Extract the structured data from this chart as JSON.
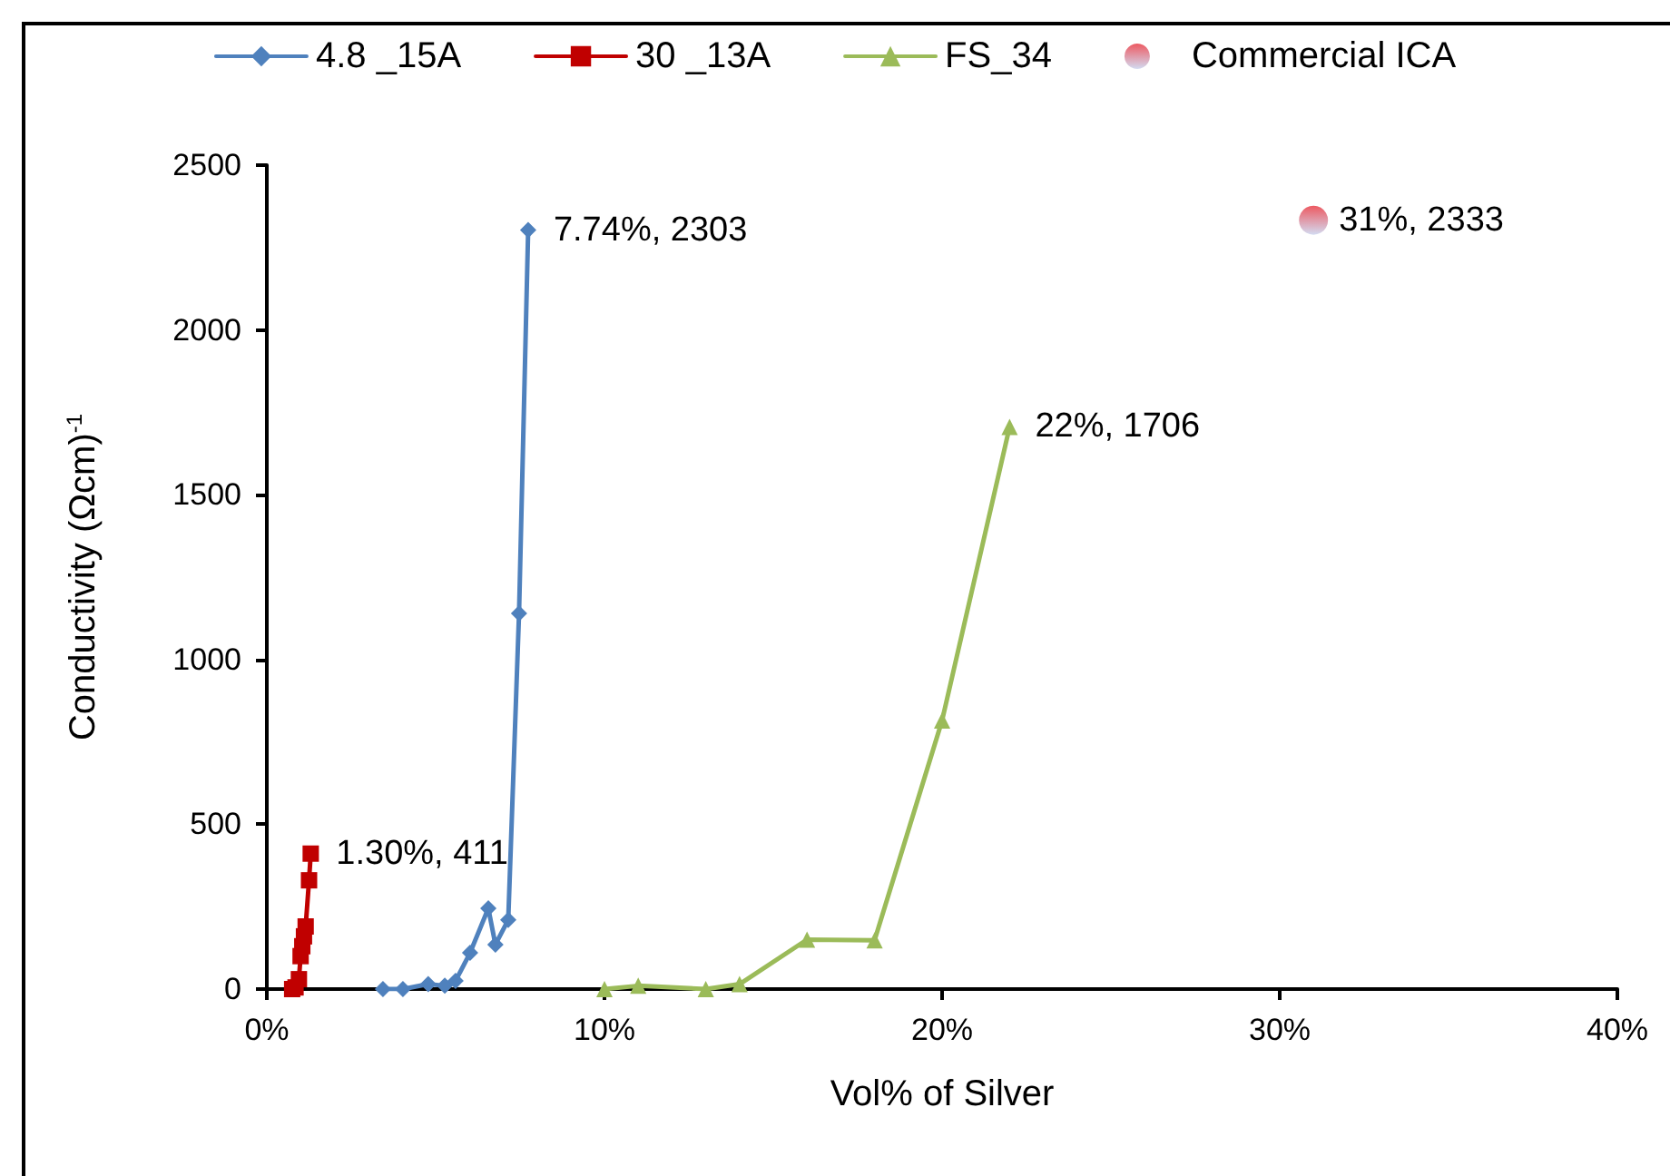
{
  "chart_data": {
    "type": "line",
    "xlabel": "Vol% of Silver",
    "ylabel": "Conductivity (Ωcm)$^{-1}$",
    "xlim": [
      0,
      40
    ],
    "xticks": [
      {
        "value": 0,
        "label": "0%"
      },
      {
        "value": 10,
        "label": "10%"
      },
      {
        "value": 20,
        "label": "20%"
      },
      {
        "value": 30,
        "label": "30%"
      },
      {
        "value": 40,
        "label": "40%"
      }
    ],
    "ylim": [
      0,
      2500
    ],
    "yticks": [
      0,
      500,
      1000,
      1500,
      2000,
      2500
    ],
    "grid": false,
    "legend": "top",
    "series": [
      {
        "name": "4.8 _15A",
        "color": "#4f81bd",
        "marker": "diamond",
        "x": [
          3.44,
          4.03,
          4.78,
          5.27,
          5.59,
          6.02,
          6.56,
          6.77,
          7.15,
          7.47,
          7.74
        ],
        "values": [
          0,
          0,
          15,
          10,
          25,
          110,
          245,
          135,
          210,
          1140,
          2303
        ]
      },
      {
        "name": "30 _13A",
        "color": "#c00000",
        "marker": "square",
        "x": [
          0.75,
          0.85,
          0.95,
          1.0,
          1.05,
          1.1,
          1.15,
          1.25,
          1.3
        ],
        "values": [
          0,
          5,
          30,
          100,
          130,
          160,
          190,
          330,
          411
        ]
      },
      {
        "name": "FS_34",
        "color": "#9bbb59",
        "marker": "triangle",
        "x": [
          10,
          11,
          13,
          14,
          16,
          18,
          20,
          22
        ],
        "values": [
          0,
          10,
          0,
          15,
          150,
          148,
          815,
          1706
        ]
      },
      {
        "name": "Commercial ICA",
        "type": "scatter",
        "color": "#e8303a",
        "marker": "circle",
        "x": [
          31
        ],
        "values": [
          2333
        ]
      }
    ],
    "annotations": [
      {
        "text": "7.74%, 2303",
        "x": 7.74,
        "y": 2303
      },
      {
        "text": "1.30%, 411",
        "x": 1.3,
        "y": 411
      },
      {
        "text": "22%, 1706",
        "x": 22,
        "y": 1706
      },
      {
        "text": "31%, 2333",
        "x": 31,
        "y": 2333
      }
    ]
  }
}
